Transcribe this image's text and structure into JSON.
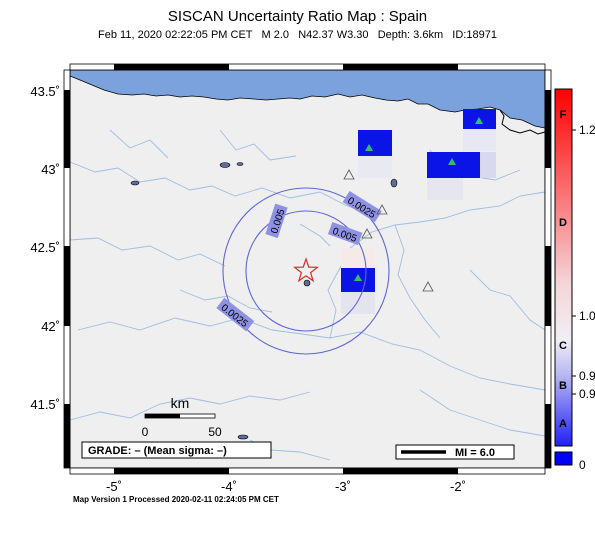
{
  "title": "SISCAN Uncertainty Ratio Map : Spain",
  "event": {
    "date": "Feb 11, 2020 02:22:05 PM CET",
    "magnitude": "M 2.0",
    "location": "N42.37 W3.30",
    "depth": "Depth: 3.6km",
    "id": "ID:18971"
  },
  "axes": {
    "lat_labels": [
      "43.5˚",
      "43˚",
      "42.5˚",
      "42˚",
      "41.5˚"
    ],
    "lon_labels": [
      "-5˚",
      "-4˚",
      "-3˚",
      "-2˚"
    ]
  },
  "contours": [
    "0.0025",
    "0.005",
    "0.005",
    "0.0025"
  ],
  "scale": {
    "title": "km",
    "min": "0",
    "max": "50"
  },
  "grade_box": "GRADE: – (Mean sigma: –)",
  "mi_box": "MI = 6.0",
  "colorbar": {
    "grades": [
      "F",
      "D",
      "C",
      "B",
      "A"
    ],
    "values": [
      "1.2",
      "1.0",
      "0.9",
      "0.9",
      "0"
    ],
    "colors": {
      "top": "#ff0000",
      "mid": "#f4eef0",
      "bottom": "#0000ff"
    }
  },
  "footer": "Map Version 1 Processed 2020-02-11 02:24:05 PM CET",
  "colors": {
    "sea": "#7ba2dd",
    "land": "#efefef",
    "river": "#9ebde3",
    "contour": "#5e66d8",
    "station_blue": "#0a14e6",
    "epicenter": "#e32a2a",
    "station_triangle": "#2fc16a"
  }
}
